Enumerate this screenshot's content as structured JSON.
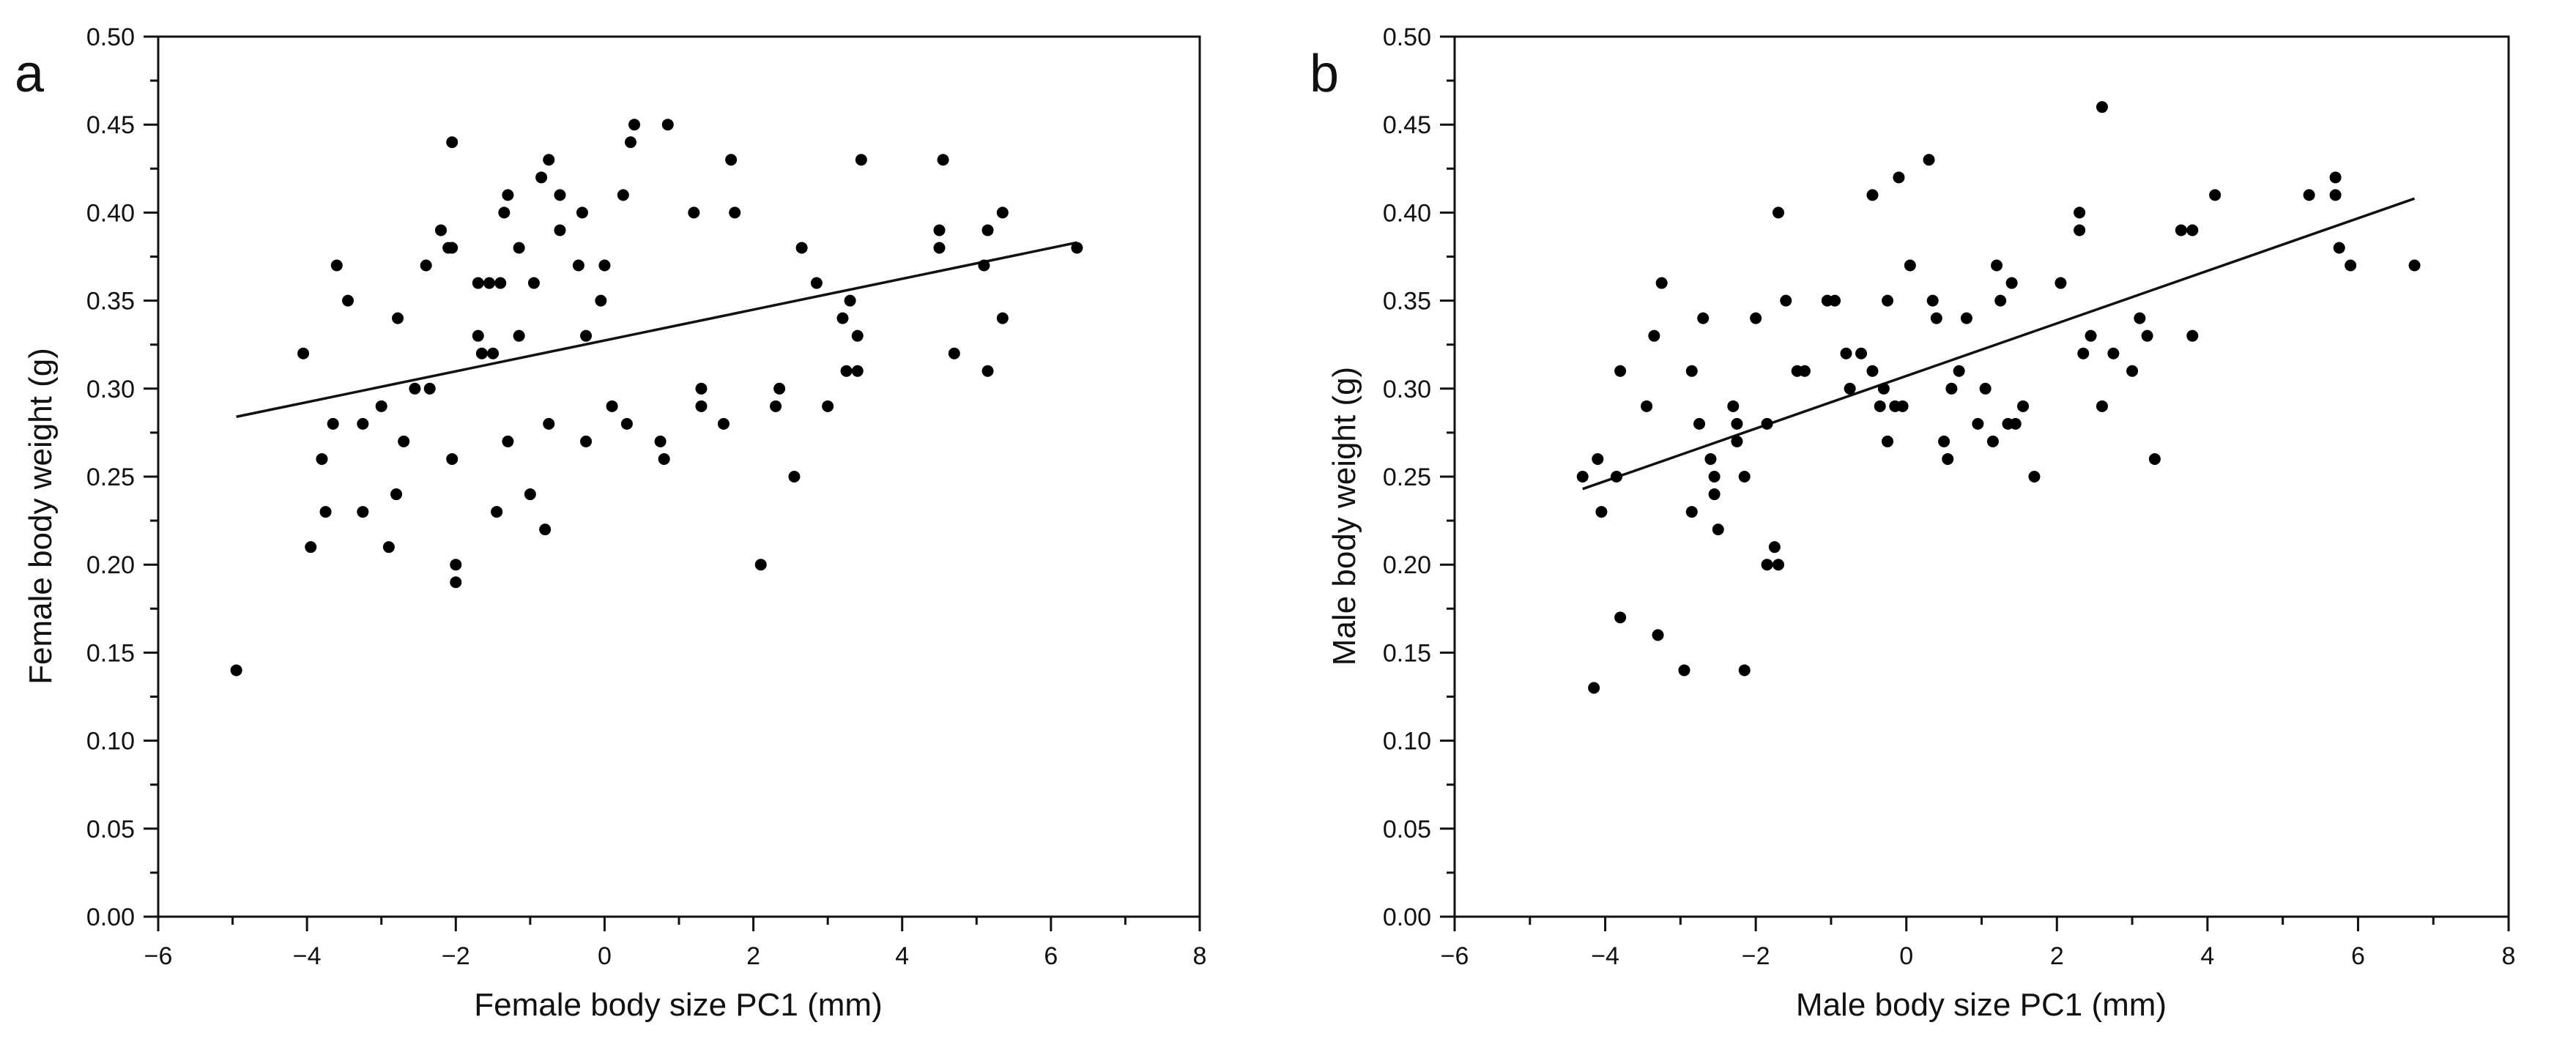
{
  "chart_data": [
    {
      "type": "scatter",
      "panel_label": "a",
      "title": "",
      "xlabel": "Female body size PC1 (mm)",
      "ylabel": "Female body weight (g)",
      "xlim": [
        -6,
        8
      ],
      "ylim": [
        0.0,
        0.5
      ],
      "xticks": [
        "−6",
        "−4",
        "−2",
        "0",
        "2",
        "4",
        "6",
        "8"
      ],
      "yticks": [
        "0.00",
        "0.05",
        "0.10",
        "0.15",
        "0.20",
        "0.25",
        "0.30",
        "0.35",
        "0.40",
        "0.45",
        "0.50"
      ],
      "grid": false,
      "legend": "none",
      "points": [
        [
          -4.95,
          0.14
        ],
        [
          -4.05,
          0.32
        ],
        [
          -3.95,
          0.21
        ],
        [
          -3.8,
          0.26
        ],
        [
          -3.75,
          0.23
        ],
        [
          -3.65,
          0.28
        ],
        [
          -3.6,
          0.37
        ],
        [
          -3.45,
          0.35
        ],
        [
          -3.25,
          0.28
        ],
        [
          -3.25,
          0.23
        ],
        [
          -3.0,
          0.29
        ],
        [
          -2.9,
          0.21
        ],
        [
          -2.8,
          0.24
        ],
        [
          -2.78,
          0.34
        ],
        [
          -2.7,
          0.27
        ],
        [
          -2.55,
          0.3
        ],
        [
          -2.4,
          0.37
        ],
        [
          -2.35,
          0.3
        ],
        [
          -2.2,
          0.39
        ],
        [
          -2.1,
          0.38
        ],
        [
          -2.05,
          0.38
        ],
        [
          -2.05,
          0.44
        ],
        [
          -2.05,
          0.26
        ],
        [
          -2.0,
          0.2
        ],
        [
          -2.0,
          0.19
        ],
        [
          -1.7,
          0.36
        ],
        [
          -1.7,
          0.33
        ],
        [
          -1.65,
          0.32
        ],
        [
          -1.55,
          0.36
        ],
        [
          -1.5,
          0.32
        ],
        [
          -1.45,
          0.23
        ],
        [
          -1.4,
          0.36
        ],
        [
          -1.35,
          0.4
        ],
        [
          -1.3,
          0.41
        ],
        [
          -1.3,
          0.27
        ],
        [
          -1.15,
          0.38
        ],
        [
          -1.15,
          0.33
        ],
        [
          -1.0,
          0.24
        ],
        [
          -0.95,
          0.36
        ],
        [
          -0.85,
          0.42
        ],
        [
          -0.75,
          0.43
        ],
        [
          -0.75,
          0.28
        ],
        [
          -0.8,
          0.22
        ],
        [
          -0.6,
          0.39
        ],
        [
          -0.6,
          0.41
        ],
        [
          -0.35,
          0.37
        ],
        [
          -0.3,
          0.4
        ],
        [
          -0.25,
          0.33
        ],
        [
          -0.25,
          0.27
        ],
        [
          -0.05,
          0.35
        ],
        [
          0.0,
          0.37
        ],
        [
          0.1,
          0.29
        ],
        [
          0.25,
          0.41
        ],
        [
          0.3,
          0.28
        ],
        [
          0.35,
          0.44
        ],
        [
          0.4,
          0.45
        ],
        [
          0.75,
          0.27
        ],
        [
          0.8,
          0.26
        ],
        [
          0.85,
          0.45
        ],
        [
          1.2,
          0.4
        ],
        [
          1.3,
          0.3
        ],
        [
          1.3,
          0.29
        ],
        [
          1.6,
          0.28
        ],
        [
          1.7,
          0.43
        ],
        [
          1.75,
          0.4
        ],
        [
          2.1,
          0.2
        ],
        [
          2.3,
          0.29
        ],
        [
          2.35,
          0.3
        ],
        [
          2.55,
          0.25
        ],
        [
          2.65,
          0.38
        ],
        [
          2.85,
          0.36
        ],
        [
          3.0,
          0.29
        ],
        [
          3.2,
          0.34
        ],
        [
          3.25,
          0.31
        ],
        [
          3.3,
          0.35
        ],
        [
          3.4,
          0.31
        ],
        [
          3.4,
          0.33
        ],
        [
          3.45,
          0.43
        ],
        [
          4.5,
          0.39
        ],
        [
          4.5,
          0.38
        ],
        [
          4.55,
          0.43
        ],
        [
          4.7,
          0.32
        ],
        [
          5.1,
          0.37
        ],
        [
          5.15,
          0.39
        ],
        [
          5.15,
          0.31
        ],
        [
          5.35,
          0.34
        ],
        [
          5.35,
          0.4
        ],
        [
          6.35,
          0.38
        ]
      ],
      "fit_line": {
        "x": [
          -4.95,
          6.35
        ],
        "y": [
          0.284,
          0.383
        ]
      }
    },
    {
      "type": "scatter",
      "panel_label": "b",
      "title": "",
      "xlabel": "Male body size PC1 (mm)",
      "ylabel": "Male body weight (g)",
      "xlim": [
        -6,
        8
      ],
      "ylim": [
        0.0,
        0.5
      ],
      "xticks": [
        "−6",
        "−4",
        "−2",
        "0",
        "2",
        "4",
        "6",
        "8"
      ],
      "yticks": [
        "0.00",
        "0.05",
        "0.10",
        "0.15",
        "0.20",
        "0.25",
        "0.30",
        "0.35",
        "0.40",
        "0.45",
        "0.50"
      ],
      "grid": false,
      "legend": "none",
      "points": [
        [
          -4.3,
          0.25
        ],
        [
          -4.15,
          0.13
        ],
        [
          -4.1,
          0.26
        ],
        [
          -4.05,
          0.23
        ],
        [
          -3.85,
          0.25
        ],
        [
          -3.8,
          0.17
        ],
        [
          -3.8,
          0.31
        ],
        [
          -3.45,
          0.29
        ],
        [
          -3.35,
          0.33
        ],
        [
          -3.3,
          0.16
        ],
        [
          -3.25,
          0.36
        ],
        [
          -2.95,
          0.14
        ],
        [
          -2.85,
          0.31
        ],
        [
          -2.85,
          0.23
        ],
        [
          -2.75,
          0.28
        ],
        [
          -2.7,
          0.34
        ],
        [
          -2.6,
          0.26
        ],
        [
          -2.55,
          0.25
        ],
        [
          -2.55,
          0.24
        ],
        [
          -2.5,
          0.22
        ],
        [
          -2.3,
          0.29
        ],
        [
          -2.25,
          0.28
        ],
        [
          -2.25,
          0.27
        ],
        [
          -2.15,
          0.25
        ],
        [
          -2.15,
          0.14
        ],
        [
          -2.0,
          0.34
        ],
        [
          -1.85,
          0.28
        ],
        [
          -1.85,
          0.2
        ],
        [
          -1.75,
          0.21
        ],
        [
          -1.7,
          0.2
        ],
        [
          -1.7,
          0.4
        ],
        [
          -1.6,
          0.35
        ],
        [
          -1.45,
          0.31
        ],
        [
          -1.35,
          0.31
        ],
        [
          -1.05,
          0.35
        ],
        [
          -0.95,
          0.35
        ],
        [
          -0.8,
          0.32
        ],
        [
          -0.75,
          0.3
        ],
        [
          -0.6,
          0.32
        ],
        [
          -0.45,
          0.31
        ],
        [
          -0.45,
          0.41
        ],
        [
          -0.35,
          0.29
        ],
        [
          -0.3,
          0.3
        ],
        [
          -0.25,
          0.27
        ],
        [
          -0.25,
          0.35
        ],
        [
          -0.15,
          0.29
        ],
        [
          -0.1,
          0.42
        ],
        [
          -0.05,
          0.29
        ],
        [
          0.05,
          0.37
        ],
        [
          0.3,
          0.43
        ],
        [
          0.35,
          0.35
        ],
        [
          0.4,
          0.34
        ],
        [
          0.5,
          0.27
        ],
        [
          0.55,
          0.26
        ],
        [
          0.6,
          0.3
        ],
        [
          0.7,
          0.31
        ],
        [
          0.8,
          0.34
        ],
        [
          0.95,
          0.28
        ],
        [
          1.05,
          0.3
        ],
        [
          1.15,
          0.27
        ],
        [
          1.2,
          0.37
        ],
        [
          1.25,
          0.35
        ],
        [
          1.35,
          0.28
        ],
        [
          1.4,
          0.36
        ],
        [
          1.45,
          0.28
        ],
        [
          1.55,
          0.29
        ],
        [
          1.7,
          0.25
        ],
        [
          2.05,
          0.36
        ],
        [
          2.3,
          0.4
        ],
        [
          2.3,
          0.39
        ],
        [
          2.35,
          0.32
        ],
        [
          2.45,
          0.33
        ],
        [
          2.6,
          0.46
        ],
        [
          2.6,
          0.29
        ],
        [
          2.75,
          0.32
        ],
        [
          3.0,
          0.31
        ],
        [
          3.1,
          0.34
        ],
        [
          3.2,
          0.33
        ],
        [
          3.3,
          0.26
        ],
        [
          3.65,
          0.39
        ],
        [
          3.8,
          0.39
        ],
        [
          3.8,
          0.33
        ],
        [
          4.1,
          0.41
        ],
        [
          5.35,
          0.41
        ],
        [
          5.7,
          0.42
        ],
        [
          5.7,
          0.41
        ],
        [
          5.75,
          0.38
        ],
        [
          5.9,
          0.37
        ],
        [
          6.75,
          0.37
        ]
      ],
      "fit_line": {
        "x": [
          -4.3,
          6.75
        ],
        "y": [
          0.243,
          0.408
        ]
      }
    }
  ]
}
